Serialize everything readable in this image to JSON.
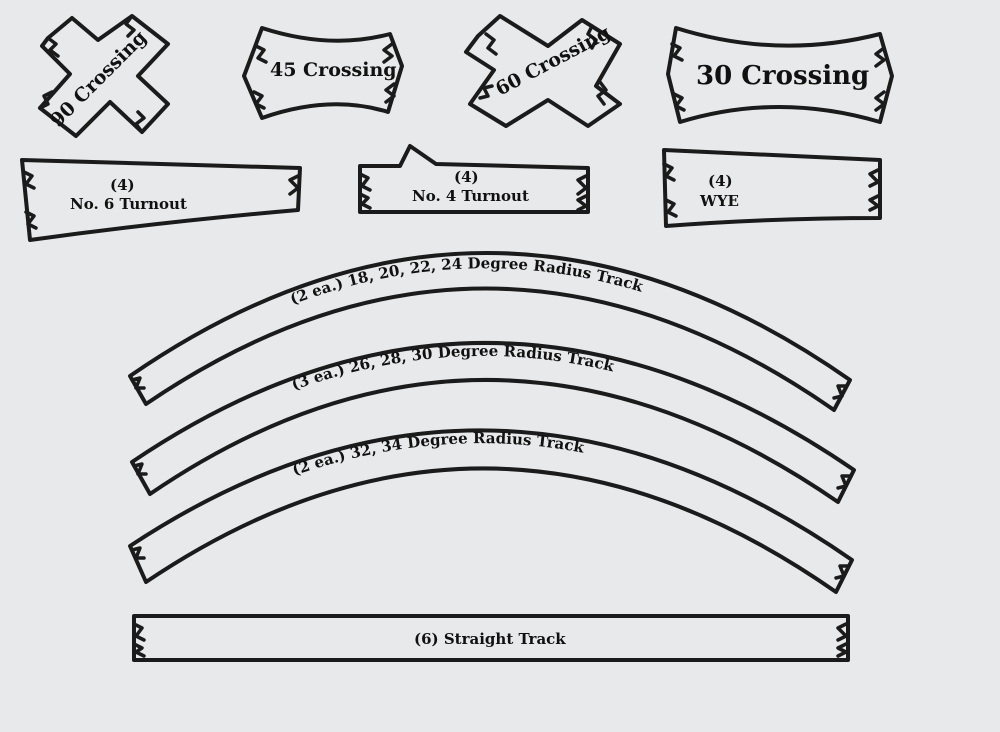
{
  "pieces": {
    "crossing_90": "90 Crossing",
    "crossing_45": "45 Crossing",
    "crossing_60": "60 Crossing",
    "crossing_30": "30 Crossing",
    "turnout_6_qty": "(4)",
    "turnout_6": "No. 6 Turnout",
    "turnout_4_qty": "(4)",
    "turnout_4": "No. 4 Turnout",
    "wye_qty": "(4)",
    "wye": "WYE",
    "radius_1": "(2 ea.) 18, 20, 22, 24  Degree Radius  Track",
    "radius_2": "(3 ea.) 26, 28, 30  Degree Radius  Track",
    "radius_3": "(2 ea.)  32, 34  Degree Radius  Track",
    "straight": "(6) Straight Track"
  },
  "colors": {
    "background": "#e8e9ea",
    "outline": "#1b1b1b"
  }
}
